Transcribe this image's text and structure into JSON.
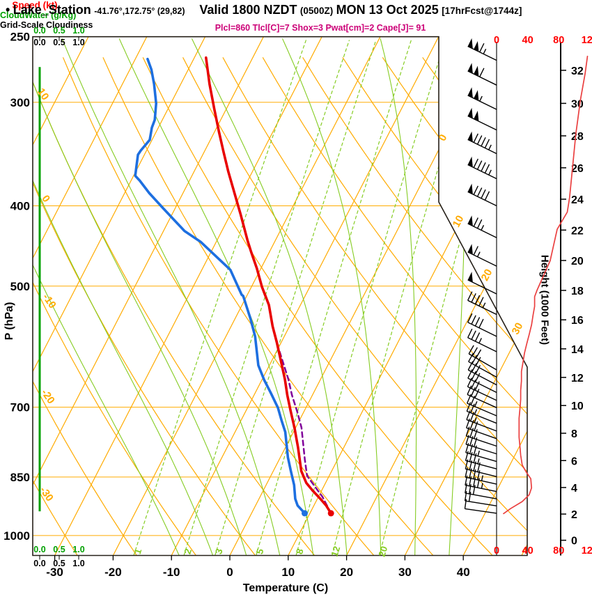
{
  "title": {
    "bullet": "•",
    "station": "Lake_Station",
    "coords": "-41.76°,172.75° (29,82)",
    "valid": "Valid 1800 NZDT",
    "valid_utc": "(0500Z)",
    "date": "MON 13 Oct 2025",
    "forecast": "[17hrFcst@1744z]"
  },
  "params_line": "Plcl=860 Tlcl[C]=7 Shox=3 Pwat[cm]=2 Cape[J]= 91",
  "indices": {
    "Plcl": 860,
    "Tlcl_C": 7,
    "Shox": 3,
    "Pwat_cm": 2,
    "Cape_J": 91
  },
  "colors": {
    "grid_orange": "#ffab00",
    "green_light": "#85cc22",
    "green_dark": "#00a000",
    "temperature_red": "#e80000",
    "dewpoint_blue": "#1d6fe0",
    "parcel_purple": "#80009a",
    "speed_curve_red": "#ea4040",
    "speed_label_red": "#ff0000",
    "params_magenta": "#cc0077",
    "border_black": "#262019"
  },
  "chart_data": {
    "type": "skewt-logp-sounding",
    "pressure_axis": {
      "label": "P (hPa)",
      "ticks": [
        250,
        300,
        400,
        500,
        700,
        850,
        1000
      ],
      "range": [
        250,
        1057
      ]
    },
    "temperature_axis": {
      "label": "Temperature (C)",
      "ticks": [
        -30,
        -20,
        -10,
        0,
        10,
        20,
        30,
        40
      ],
      "unit": "C"
    },
    "height_axis": {
      "label": "Height (1000 Feet)",
      "ticks": [
        0,
        2,
        4,
        6,
        8,
        10,
        12,
        14,
        16,
        18,
        20,
        22,
        24,
        26,
        28,
        30,
        32
      ]
    },
    "speed_axis": {
      "label": "Speed (kt)",
      "ticks": [
        0,
        40,
        80,
        120
      ]
    },
    "cloudwater_axis": {
      "label": "CloudWater (g/Kg)",
      "ticks": [
        "0.0",
        "0.5",
        "1.0"
      ]
    },
    "cloudiness_axis": {
      "label": "Grid-Scale Cloudiness",
      "ticks": [
        "0.0",
        "0.5",
        "1.0"
      ]
    },
    "isotherm_values": [
      -80,
      -70,
      -60,
      -50,
      -40,
      -30,
      -20,
      -10,
      0,
      10,
      20,
      30,
      40,
      50
    ],
    "isotherm_edge_labels": [
      0,
      10,
      20,
      30
    ],
    "dry_adiabat_values": [
      -40,
      -30,
      -20,
      -10,
      0,
      10,
      20,
      30,
      40,
      50,
      60,
      70,
      80,
      90,
      100,
      110,
      120,
      130,
      140,
      150
    ],
    "dry_adiabat_edge_labels": [
      10,
      0,
      -10,
      -20,
      -30
    ],
    "moist_adiabat_values": [
      -12,
      -6,
      0,
      6,
      12,
      18,
      24,
      30,
      36
    ],
    "mixing_ratio_values": [
      1,
      2,
      3,
      5,
      8,
      12,
      20
    ],
    "surface": {
      "pressure_hPa": 940,
      "temperature_C": 13.6,
      "dewpoint_C": 9.1
    },
    "temperature_profile": {
      "name": "temperature",
      "points_p_T": [
        [
          265,
          -48.0
        ],
        [
          285,
          -45.1
        ],
        [
          306,
          -42.0
        ],
        [
          326,
          -39.2
        ],
        [
          345,
          -36.6
        ],
        [
          364,
          -34.1
        ],
        [
          382,
          -31.7
        ],
        [
          410,
          -28.2
        ],
        [
          441,
          -24.7
        ],
        [
          455,
          -23.1
        ],
        [
          476,
          -20.7
        ],
        [
          501,
          -18.2
        ],
        [
          527,
          -15.4
        ],
        [
          559,
          -12.9
        ],
        [
          584,
          -10.8
        ],
        [
          609,
          -8.9
        ],
        [
          648,
          -6.1
        ],
        [
          677,
          -4.3
        ],
        [
          708,
          -2.3
        ],
        [
          741,
          -0.2
        ],
        [
          782,
          2.1
        ],
        [
          836,
          4.8
        ],
        [
          864,
          6.7
        ],
        [
          882,
          8.4
        ],
        [
          903,
          10.5
        ],
        [
          920,
          12.1
        ],
        [
          940,
          13.6
        ]
      ]
    },
    "dewpoint_profile": {
      "name": "dewpoint",
      "points_p_T": [
        [
          266,
          -57.9
        ],
        [
          274,
          -56.3
        ],
        [
          285,
          -54.6
        ],
        [
          301,
          -52.5
        ],
        [
          315,
          -51.3
        ],
        [
          322,
          -51.1
        ],
        [
          333,
          -50.4
        ],
        [
          343,
          -51.0
        ],
        [
          347,
          -51.1
        ],
        [
          359,
          -50.3
        ],
        [
          368,
          -49.7
        ],
        [
          373,
          -48.5
        ],
        [
          386,
          -45.8
        ],
        [
          403,
          -42.0
        ],
        [
          429,
          -36.4
        ],
        [
          442,
          -32.7
        ],
        [
          474,
          -25.9
        ],
        [
          478,
          -25.1
        ],
        [
          512,
          -21.0
        ],
        [
          514,
          -20.6
        ],
        [
          547,
          -17.4
        ],
        [
          575,
          -15.0
        ],
        [
          623,
          -11.9
        ],
        [
          649,
          -9.6
        ],
        [
          673,
          -7.3
        ],
        [
          701,
          -4.8
        ],
        [
          727,
          -3.0
        ],
        [
          750,
          -1.4
        ],
        [
          805,
          1.3
        ],
        [
          836,
          3.0
        ],
        [
          869,
          4.8
        ],
        [
          903,
          6.2
        ],
        [
          920,
          7.2
        ],
        [
          940,
          9.1
        ]
      ]
    },
    "parcel_profile": {
      "name": "parcel",
      "style": "dashed",
      "points_p_T": [
        [
          940,
          13.6
        ],
        [
          898,
          10.7
        ],
        [
          874,
          8.6
        ],
        [
          847,
          6.2
        ],
        [
          810,
          4.4
        ],
        [
          741,
          1.0
        ],
        [
          708,
          -1.2
        ],
        [
          677,
          -3.5
        ],
        [
          648,
          -5.5
        ],
        [
          610,
          -8.6
        ],
        [
          590,
          -10.3
        ]
      ]
    },
    "wind_speed_profile_p_kt": [
      [
        264,
        117
      ],
      [
        277,
        114
      ],
      [
        298,
        108
      ],
      [
        328,
        102
      ],
      [
        358,
        98
      ],
      [
        391,
        94
      ],
      [
        407,
        91
      ],
      [
        427,
        78
      ],
      [
        466,
        69
      ],
      [
        506,
        52
      ],
      [
        515,
        49
      ],
      [
        529,
        49
      ],
      [
        542,
        47
      ],
      [
        557,
        45
      ],
      [
        572,
        42
      ],
      [
        586,
        39
      ],
      [
        602,
        36
      ],
      [
        618,
        34
      ],
      [
        634,
        32
      ],
      [
        651,
        32
      ],
      [
        668,
        31
      ],
      [
        685,
        31
      ],
      [
        704,
        30
      ],
      [
        722,
        29
      ],
      [
        740,
        29
      ],
      [
        761,
        29
      ],
      [
        780,
        30
      ],
      [
        800,
        31
      ],
      [
        822,
        33
      ],
      [
        838,
        38
      ],
      [
        854,
        44
      ],
      [
        876,
        45
      ],
      [
        893,
        42
      ],
      [
        910,
        33
      ],
      [
        928,
        18
      ],
      [
        941,
        9
      ]
    ],
    "wind_barbs_p_kt": [
      [
        267,
        115
      ],
      [
        286,
        110
      ],
      [
        306,
        105
      ],
      [
        324,
        100
      ],
      [
        346,
        97
      ],
      [
        371,
        93
      ],
      [
        400,
        90
      ],
      [
        437,
        75
      ],
      [
        473,
        67
      ],
      [
        511,
        50
      ],
      [
        541,
        47
      ],
      [
        575,
        41
      ],
      [
        600,
        37
      ],
      [
        631,
        32
      ],
      [
        644,
        32
      ],
      [
        658,
        31
      ],
      [
        672,
        31
      ],
      [
        687,
        30
      ],
      [
        701,
        30
      ],
      [
        717,
        29
      ],
      [
        732,
        29
      ],
      [
        748,
        29
      ],
      [
        764,
        30
      ],
      [
        780,
        30
      ],
      [
        797,
        31
      ],
      [
        814,
        33
      ],
      [
        831,
        36
      ],
      [
        849,
        42
      ],
      [
        867,
        44
      ],
      [
        885,
        44
      ],
      [
        903,
        32
      ],
      [
        921,
        20
      ],
      [
        940,
        10
      ]
    ],
    "cloudwater_profile": {
      "value_gkg": 0.0,
      "from_p": 272,
      "to_p": 935
    }
  }
}
